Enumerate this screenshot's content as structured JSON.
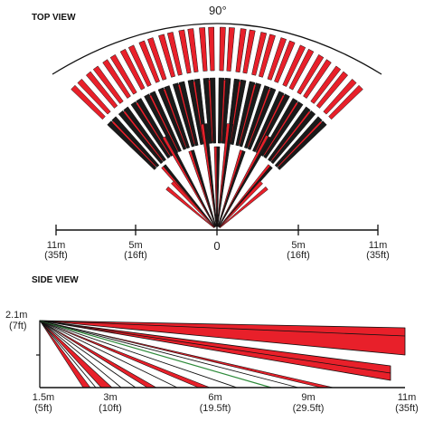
{
  "top_view": {
    "title": "TOP VIEW",
    "angle_label": "90°",
    "scale_ticks": [
      {
        "m": "11m",
        "ft": "(35ft)"
      },
      {
        "m": "5m",
        "ft": "(16ft)"
      },
      {
        "m": "0",
        "ft": ""
      },
      {
        "m": "5m",
        "ft": "(16ft)"
      },
      {
        "m": "11m",
        "ft": "(35ft)"
      }
    ]
  },
  "side_view": {
    "title": "SIDE VIEW",
    "height_label_m": "2.1m",
    "height_label_ft": "(7ft)",
    "range_ticks": [
      {
        "m": "1.5m",
        "ft": "(5ft)"
      },
      {
        "m": "3m",
        "ft": "(10ft)"
      },
      {
        "m": "6m",
        "ft": "(19.5ft)"
      },
      {
        "m": "9m",
        "ft": "(29.5ft)"
      },
      {
        "m": "11m",
        "ft": "(35ft)"
      }
    ]
  },
  "colors": {
    "beam_red": "#e8202a",
    "beam_dark": "#1a1a1a",
    "line": "#111111",
    "accent_green": "#2e8b3a"
  }
}
